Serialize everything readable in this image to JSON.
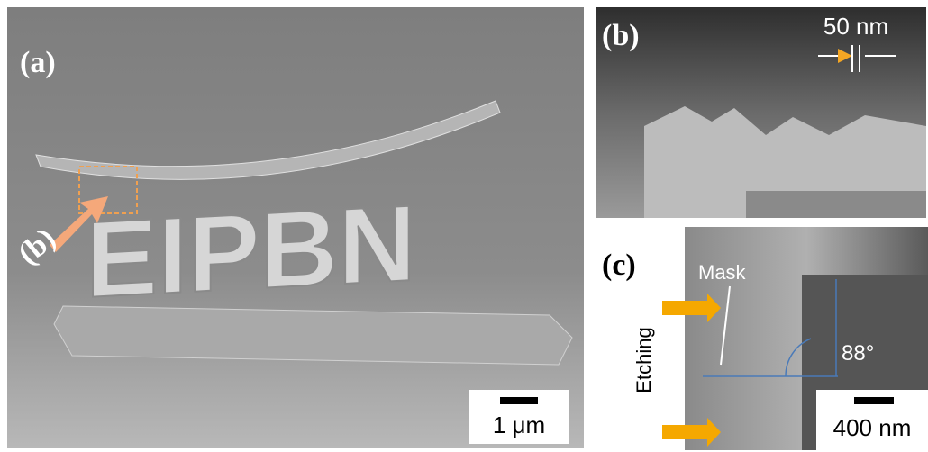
{
  "panels": [
    {
      "label": "(a)",
      "structure_text": "EIPBN",
      "callout": "(b)",
      "scale_bar": "1 μm"
    },
    {
      "label": "(b)",
      "scale_bar": "50 nm"
    },
    {
      "label": "(c)",
      "scale_bar": "400 nm",
      "mask_label": "Mask",
      "process_label": "Etching",
      "angle": "88°"
    }
  ]
}
